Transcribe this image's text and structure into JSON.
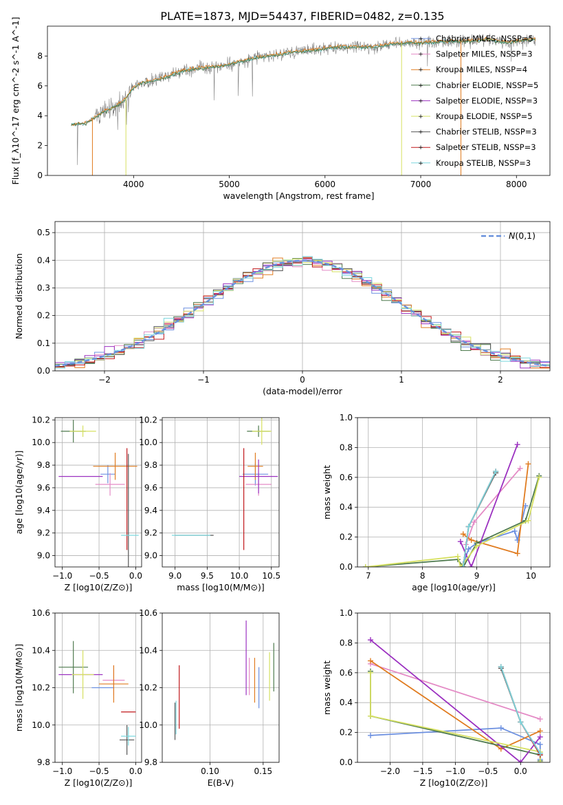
{
  "figure_title": "PLATE=1873, MJD=54437, FIBERID=0482, z=0.135",
  "colors": {
    "Chabrier MILES": "#6b8fe0",
    "Salpeter MILES": "#e48ac5",
    "Kroupa MILES": "#e07b1f",
    "Chabrier ELODIE": "#4e7a4e",
    "Salpeter ELODIE": "#9b30c0",
    "Kroupa ELODIE": "#d6e060",
    "Chabrier STELIB": "#555555",
    "Salpeter STELIB": "#c0161a",
    "Kroupa STELIB": "#7ad6dd"
  },
  "chart_data": [
    {
      "id": "spectrum",
      "type": "line",
      "title": "PLATE=1873, MJD=54437, FIBERID=0482, z=0.135",
      "xlabel": "wavelength [Angstrom, rest frame]",
      "ylabel": "Flux [f_λ10^-17 erg cm^-2 s^-1 A^-1]",
      "xlim": [
        3100,
        8350
      ],
      "ylim": [
        0,
        10
      ],
      "xticks": [
        4000,
        5000,
        6000,
        7000,
        8000
      ],
      "yticks": [
        0,
        2,
        4,
        6,
        8
      ],
      "grid": false,
      "legend_position": "right",
      "data_color": "#808080",
      "data_control": [
        [
          3350,
          3.4
        ],
        [
          3500,
          3.5
        ],
        [
          3600,
          3.9
        ],
        [
          3700,
          4.3
        ],
        [
          3800,
          4.6
        ],
        [
          3900,
          5.0
        ],
        [
          4000,
          5.9
        ],
        [
          4100,
          6.2
        ],
        [
          4300,
          6.5
        ],
        [
          4500,
          7.0
        ],
        [
          4700,
          7.2
        ],
        [
          4900,
          7.3
        ],
        [
          5100,
          7.6
        ],
        [
          5300,
          7.9
        ],
        [
          5500,
          8.1
        ],
        [
          5700,
          8.3
        ],
        [
          5900,
          8.4
        ],
        [
          6100,
          8.6
        ],
        [
          6300,
          8.6
        ],
        [
          6500,
          8.6
        ],
        [
          6700,
          8.8
        ],
        [
          6900,
          8.9
        ],
        [
          7100,
          8.9
        ],
        [
          7300,
          9.0
        ],
        [
          7500,
          9.0
        ],
        [
          7700,
          9.1
        ],
        [
          7900,
          8.9
        ],
        [
          8100,
          9.1
        ],
        [
          8200,
          9.1
        ]
      ],
      "series": [
        {
          "name": "Chabrier MILES, N_SSP=5",
          "legend": "Chabrier MILES, NSSP=5"
        },
        {
          "name": "Salpeter MILES, N_SSP=3",
          "legend": "Salpeter MILES, NSSP=3"
        },
        {
          "name": "Kroupa MILES, N_SSP=4",
          "legend": "Kroupa MILES, NSSP=4"
        },
        {
          "name": "Chabrier ELODIE, N_SSP=5",
          "legend": "Chabrier ELODIE, NSSP=5"
        },
        {
          "name": "Salpeter ELODIE, N_SSP=3",
          "legend": "Salpeter ELODIE, NSSP=3"
        },
        {
          "name": "Kroupa ELODIE, N_SSP=5",
          "legend": "Kroupa ELODIE, NSSP=5"
        },
        {
          "name": "Chabrier STELIB, N_SSP=3",
          "legend": "Chabrier STELIB, NSSP=3"
        },
        {
          "name": "Salpeter STELIB, N_SSP=3",
          "legend": "Salpeter STELIB, NSSP=3"
        },
        {
          "name": "Kroupa STELIB, N_SSP=3",
          "legend": "Kroupa STELIB, NSSP=3"
        }
      ]
    },
    {
      "id": "residuals",
      "type": "line",
      "xlabel": "(data-model)/error",
      "ylabel": "Normed distribution",
      "xlim": [
        -2.5,
        2.5
      ],
      "ylim": [
        0,
        0.54
      ],
      "xticks": [
        -2,
        -1,
        0,
        1,
        2
      ],
      "yticks": [
        0.0,
        0.1,
        0.2,
        0.3,
        0.4,
        0.5
      ],
      "grid": true,
      "legend_position": "top-right",
      "reference": {
        "name": "N(0,1)",
        "color": "#6890dc",
        "style": "dashed"
      },
      "bin_width": 0.1
    },
    {
      "id": "age_vs_Z",
      "type": "scatter",
      "xlabel": "Z [log10(Z/Z⊙)]",
      "ylabel": "age [log10(age/yr)]",
      "xlim": [
        -1.1,
        0.08
      ],
      "ylim": [
        8.9,
        10.22
      ],
      "xticks": [
        -1.0,
        -0.5,
        0.0
      ],
      "yticks": [
        9.0,
        9.2,
        9.4,
        9.6,
        9.8,
        10.0,
        10.2
      ],
      "grid": true,
      "points": [
        {
          "series": "Chabrier MILES",
          "x": -0.38,
          "y": 9.72,
          "xerr": 0.1,
          "yerr": 0.08
        },
        {
          "series": "Salpeter MILES",
          "x": -0.35,
          "y": 9.63,
          "xerr": 0.2,
          "yerr": 0.1
        },
        {
          "series": "Kroupa MILES",
          "x": -0.28,
          "y": 9.79,
          "xerr": 0.3,
          "yerr": 0.12
        },
        {
          "series": "Chabrier ELODIE",
          "x": -0.85,
          "y": 10.1,
          "xerr": 0.17,
          "yerr": 0.1
        },
        {
          "series": "Salpeter ELODIE",
          "x": -0.75,
          "y": 9.7,
          "xerr": 0.3,
          "yerr": 0.0
        },
        {
          "series": "Kroupa ELODIE",
          "x": -0.72,
          "y": 10.1,
          "xerr": 0.18,
          "yerr": 0.05
        },
        {
          "series": "Chabrier STELIB",
          "x": -0.1,
          "y": 9.4,
          "xerr": 0.0,
          "yerr": 0.5
        },
        {
          "series": "Salpeter STELIB",
          "x": -0.12,
          "y": 9.5,
          "xerr": 0.0,
          "yerr": 0.45
        },
        {
          "series": "Kroupa STELIB",
          "x": -0.08,
          "y": 9.18,
          "xerr": 0.12,
          "yerr": 0.0
        }
      ]
    },
    {
      "id": "age_vs_mass",
      "type": "scatter",
      "xlabel": "mass [log10(M/M⊙)]",
      "ylabel": "",
      "xlim": [
        8.8,
        10.62
      ],
      "ylim": [
        8.9,
        10.22
      ],
      "xticks": [
        9.0,
        9.5,
        10.0,
        10.5
      ],
      "yticks": [
        9.0,
        9.2,
        9.4,
        9.6,
        9.8,
        10.0,
        10.2
      ],
      "grid": true,
      "points": [
        {
          "series": "Chabrier MILES",
          "x": 10.25,
          "y": 9.72,
          "xerr": 0.2,
          "yerr": 0.1
        },
        {
          "series": "Salpeter MILES",
          "x": 10.3,
          "y": 9.63,
          "xerr": 0.2,
          "yerr": 0.1
        },
        {
          "series": "Kroupa MILES",
          "x": 10.25,
          "y": 9.79,
          "xerr": 0.12,
          "yerr": 0.12
        },
        {
          "series": "Chabrier ELODIE",
          "x": 10.3,
          "y": 10.1,
          "xerr": 0.18,
          "yerr": 0.05
        },
        {
          "series": "Salpeter ELODIE",
          "x": 10.3,
          "y": 9.7,
          "xerr": 0.3,
          "yerr": 0.15
        },
        {
          "series": "Kroupa ELODIE",
          "x": 10.35,
          "y": 10.1,
          "xerr": 0.15,
          "yerr": 0.12
        },
        {
          "series": "Chabrier STELIB",
          "x": 9.3,
          "y": 9.18,
          "xerr": 0.3,
          "yerr": 0.0
        },
        {
          "series": "Salpeter STELIB",
          "x": 10.07,
          "y": 9.5,
          "xerr": 0.0,
          "yerr": 0.45
        },
        {
          "series": "Kroupa STELIB",
          "x": 9.25,
          "y": 9.18,
          "xerr": 0.3,
          "yerr": 0.0
        }
      ]
    },
    {
      "id": "mass_weight_vs_age",
      "type": "line",
      "xlabel": "age [log10(age/yr)]",
      "ylabel": "mass weight",
      "xlim": [
        6.8,
        10.35
      ],
      "ylim": [
        0,
        1
      ],
      "xticks": [
        7,
        8,
        9,
        10
      ],
      "yticks": [
        0.0,
        0.2,
        0.4,
        0.6,
        0.8,
        1.0
      ],
      "grid": true,
      "series": [
        {
          "name": "Chabrier MILES",
          "points": [
            [
              8.75,
              0.02
            ],
            [
              8.85,
              0.12
            ],
            [
              9.0,
              0.16
            ],
            [
              9.7,
              0.24
            ],
            [
              9.75,
              0.18
            ],
            [
              9.9,
              0.41
            ]
          ]
        },
        {
          "name": "Salpeter MILES",
          "points": [
            [
              8.8,
              0.15
            ],
            [
              8.95,
              0.3
            ],
            [
              9.8,
              0.66
            ]
          ]
        },
        {
          "name": "Kroupa MILES",
          "points": [
            [
              8.75,
              0.22
            ],
            [
              8.9,
              0.18
            ],
            [
              9.75,
              0.09
            ],
            [
              9.95,
              0.69
            ]
          ]
        },
        {
          "name": "Chabrier ELODIE",
          "points": [
            [
              6.95,
              0.0
            ],
            [
              8.65,
              0.05
            ],
            [
              8.75,
              0.0
            ],
            [
              9.0,
              0.16
            ],
            [
              9.9,
              0.31
            ],
            [
              10.15,
              0.61
            ]
          ]
        },
        {
          "name": "Salpeter ELODIE",
          "points": [
            [
              8.7,
              0.17
            ],
            [
              8.9,
              0.0
            ],
            [
              9.75,
              0.82
            ]
          ]
        },
        {
          "name": "Kroupa ELODIE",
          "points": [
            [
              6.95,
              0.0
            ],
            [
              8.65,
              0.07
            ],
            [
              8.7,
              0.0
            ],
            [
              9.0,
              0.14
            ],
            [
              9.95,
              0.31
            ],
            [
              10.15,
              0.6
            ]
          ]
        },
        {
          "name": "Chabrier STELIB",
          "points": [
            [
              8.75,
              0.0
            ],
            [
              8.85,
              0.27
            ],
            [
              9.35,
              0.63
            ]
          ]
        },
        {
          "name": "Salpeter STELIB",
          "points": [
            [
              8.75,
              0.0
            ],
            [
              8.85,
              0.27
            ],
            [
              9.35,
              0.64
            ]
          ]
        },
        {
          "name": "Kroupa STELIB",
          "points": [
            [
              8.75,
              0.0
            ],
            [
              8.85,
              0.27
            ],
            [
              9.35,
              0.64
            ]
          ]
        }
      ]
    },
    {
      "id": "mass_vs_Z",
      "type": "scatter",
      "xlabel": "Z [log10(Z/Z⊙)]",
      "ylabel": "mass [log10(M/M⊙)]",
      "xlim": [
        -1.1,
        0.08
      ],
      "ylim": [
        9.8,
        10.6
      ],
      "xticks": [
        -1.0,
        -0.5,
        0.0
      ],
      "yticks": [
        9.8,
        10.0,
        10.2,
        10.4,
        10.6
      ],
      "grid": true,
      "points": [
        {
          "series": "Chabrier MILES",
          "x": -0.45,
          "y": 10.2,
          "xerr": 0.15,
          "yerr": 0.0
        },
        {
          "series": "Salpeter MILES",
          "x": -0.3,
          "y": 10.24,
          "xerr": 0.15,
          "yerr": 0.08
        },
        {
          "series": "Kroupa MILES",
          "x": -0.3,
          "y": 10.22,
          "xerr": 0.2,
          "yerr": 0.1
        },
        {
          "series": "Chabrier ELODIE",
          "x": -0.85,
          "y": 10.31,
          "xerr": 0.2,
          "yerr": 0.14
        },
        {
          "series": "Salpeter ELODIE",
          "x": -0.75,
          "y": 10.27,
          "xerr": 0.3,
          "yerr": 0.0
        },
        {
          "series": "Kroupa ELODIE",
          "x": -0.72,
          "y": 10.27,
          "xerr": 0.15,
          "yerr": 0.13
        },
        {
          "series": "Chabrier STELIB",
          "x": -0.12,
          "y": 9.92,
          "xerr": 0.1,
          "yerr": 0.08
        },
        {
          "series": "Salpeter STELIB",
          "x": -0.1,
          "y": 10.07,
          "xerr": 0.1,
          "yerr": 0.0
        },
        {
          "series": "Kroupa STELIB",
          "x": -0.1,
          "y": 9.94,
          "xerr": 0.1,
          "yerr": 0.05
        }
      ]
    },
    {
      "id": "mass_vs_EBV",
      "type": "scatter",
      "xlabel": "E(B-V)",
      "ylabel": "",
      "xlim": [
        0.055,
        0.165
      ],
      "ylim": [
        9.8,
        10.6
      ],
      "xticks": [
        0.1,
        0.15
      ],
      "yticks": [
        9.8,
        10.0,
        10.2,
        10.4,
        10.6
      ],
      "grid": true,
      "points": [
        {
          "series": "Chabrier MILES",
          "x": 0.146,
          "y": 10.2,
          "xerr": 0.0,
          "yerr": 0.11
        },
        {
          "series": "Salpeter MILES",
          "x": 0.137,
          "y": 10.26,
          "xerr": 0.0,
          "yerr": 0.1
        },
        {
          "series": "Kroupa MILES",
          "x": 0.142,
          "y": 10.24,
          "xerr": 0.0,
          "yerr": 0.12
        },
        {
          "series": "Chabrier ELODIE",
          "x": 0.16,
          "y": 10.31,
          "xerr": 0.0,
          "yerr": 0.13
        },
        {
          "series": "Salpeter ELODIE",
          "x": 0.134,
          "y": 10.36,
          "xerr": 0.0,
          "yerr": 0.2
        },
        {
          "series": "Kroupa ELODIE",
          "x": 0.156,
          "y": 10.26,
          "xerr": 0.0,
          "yerr": 0.13
        },
        {
          "series": "Chabrier STELIB",
          "x": 0.067,
          "y": 10.02,
          "xerr": 0.0,
          "yerr": 0.1
        },
        {
          "series": "Salpeter STELIB",
          "x": 0.071,
          "y": 10.15,
          "xerr": 0.0,
          "yerr": 0.17
        },
        {
          "series": "Kroupa STELIB",
          "x": 0.068,
          "y": 10.04,
          "xerr": 0.0,
          "yerr": 0.09
        }
      ]
    },
    {
      "id": "mass_weight_vs_Z",
      "type": "line",
      "xlabel": "Z [log10(Z/Z⊙)]",
      "ylabel": "mass weight",
      "xlim": [
        -2.5,
        0.45
      ],
      "ylim": [
        0,
        1
      ],
      "xticks": [
        -2.0,
        -1.5,
        -1.0,
        -0.5,
        0.0
      ],
      "yticks": [
        0.0,
        0.2,
        0.4,
        0.6,
        0.8,
        1.0
      ],
      "grid": true,
      "series": [
        {
          "name": "Chabrier MILES",
          "points": [
            [
              -2.3,
              0.18
            ],
            [
              -0.3,
              0.23
            ],
            [
              0.3,
              0.12
            ],
            [
              0.3,
              0.02
            ]
          ]
        },
        {
          "name": "Salpeter MILES",
          "points": [
            [
              -2.3,
              0.66
            ],
            [
              0.3,
              0.29
            ]
          ]
        },
        {
          "name": "Kroupa MILES",
          "points": [
            [
              -2.3,
              0.68
            ],
            [
              -0.3,
              0.09
            ],
            [
              0.3,
              0.21
            ]
          ]
        },
        {
          "name": "Chabrier ELODIE",
          "points": [
            [
              -2.3,
              0.61
            ],
            [
              -2.3,
              0.31
            ],
            [
              0.3,
              0.05
            ],
            [
              0.3,
              0.01
            ]
          ]
        },
        {
          "name": "Salpeter ELODIE",
          "points": [
            [
              -2.3,
              0.82
            ],
            [
              0.0,
              0.0
            ],
            [
              0.3,
              0.17
            ]
          ]
        },
        {
          "name": "Kroupa ELODIE",
          "points": [
            [
              -2.3,
              0.6
            ],
            [
              -2.3,
              0.31
            ],
            [
              0.3,
              0.07
            ],
            [
              0.3,
              0.0
            ]
          ]
        },
        {
          "name": "Chabrier STELIB",
          "points": [
            [
              -0.3,
              0.63
            ],
            [
              0.0,
              0.27
            ],
            [
              0.3,
              0.06
            ]
          ]
        },
        {
          "name": "Salpeter STELIB",
          "points": [
            [
              -0.3,
              0.64
            ],
            [
              0.0,
              0.27
            ],
            [
              0.3,
              0.05
            ]
          ]
        },
        {
          "name": "Kroupa STELIB",
          "points": [
            [
              -0.3,
              0.64
            ],
            [
              0.0,
              0.27
            ],
            [
              0.3,
              0.06
            ]
          ]
        }
      ]
    }
  ]
}
